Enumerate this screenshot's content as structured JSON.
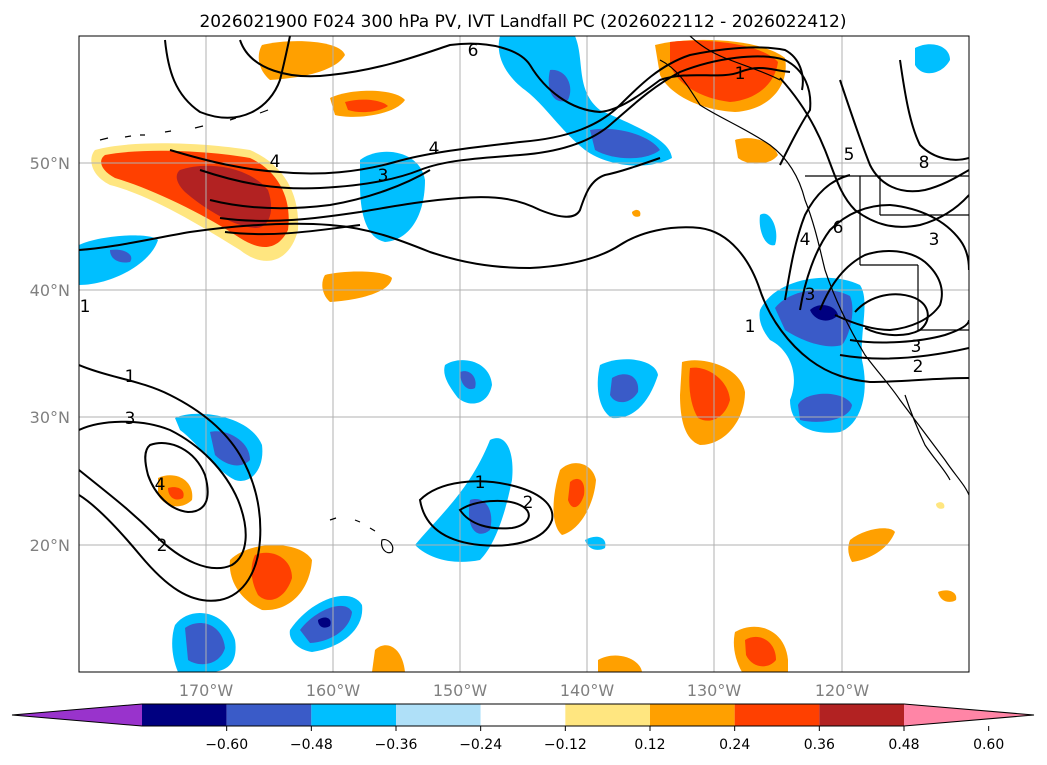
{
  "title": "2026021900 F024 300 hPa PV, IVT Landfall PC (2026022112 - 2026022412)",
  "lon_labels": [
    "170°W",
    "160°W",
    "150°W",
    "140°W",
    "130°W",
    "120°W"
  ],
  "lat_labels": [
    "50°N",
    "40°N",
    "30°N",
    "20°N"
  ],
  "colorbar": {
    "ticks": [
      "−0.60",
      "−0.48",
      "−0.36",
      "−0.24",
      "−0.12",
      "0.12",
      "0.24",
      "0.36",
      "0.48",
      "0.60"
    ],
    "colors": [
      "#9933cc",
      "#000080",
      "#3a5bc8",
      "#00bfff",
      "#afe0f8",
      "#ffffff",
      "#ffe680",
      "#ffa000",
      "#ff4000",
      "#b22222",
      "#ff85a6"
    ]
  },
  "contour_labels": [
    "6",
    "1",
    "4",
    "5",
    "8",
    "4",
    "3",
    "4",
    "6",
    "3",
    "1",
    "1",
    "3",
    "2",
    "1",
    "3",
    "4",
    "2",
    "1",
    "2",
    "3"
  ],
  "colors": {
    "coast": "#000000",
    "grid": "#b0b0b0",
    "land": "#ffffff"
  }
}
